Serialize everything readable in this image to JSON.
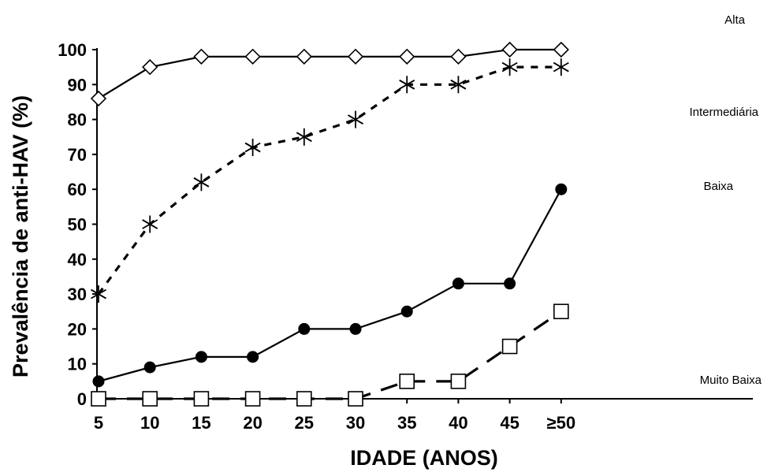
{
  "chart_data": {
    "type": "line",
    "title": "",
    "xlabel": "IDADE (ANOS)",
    "ylabel": "Prevalência de anti-HAV (%)",
    "categories": [
      "5",
      "10",
      "15",
      "20",
      "25",
      "30",
      "35",
      "40",
      "45",
      "≥50"
    ],
    "yticks": [
      "0",
      "10",
      "20",
      "30",
      "40",
      "50",
      "60",
      "70",
      "80",
      "90",
      "100"
    ],
    "ylim": [
      0,
      100
    ],
    "grid": false,
    "legend": "inline labels at right",
    "series": [
      {
        "name": "Alta",
        "marker": "diamond",
        "dash": "solid",
        "values": [
          86,
          95,
          98,
          98,
          98,
          98,
          98,
          98,
          100,
          100
        ]
      },
      {
        "name": "Intermediária",
        "marker": "asterisk",
        "dash": "dotted",
        "values": [
          30,
          50,
          62,
          72,
          75,
          80,
          90,
          90,
          95,
          95
        ]
      },
      {
        "name": "Baixa",
        "marker": "filled-circle",
        "dash": "solid",
        "values": [
          5,
          9,
          12,
          12,
          20,
          20,
          25,
          33,
          33,
          60
        ]
      },
      {
        "name": "Muito Baixa",
        "marker": "square",
        "dash": "dashed",
        "values": [
          0,
          0,
          0,
          0,
          0,
          0,
          5,
          5,
          15,
          25
        ]
      }
    ],
    "colors": {
      "line": "#000000",
      "background": "#ffffff"
    }
  }
}
